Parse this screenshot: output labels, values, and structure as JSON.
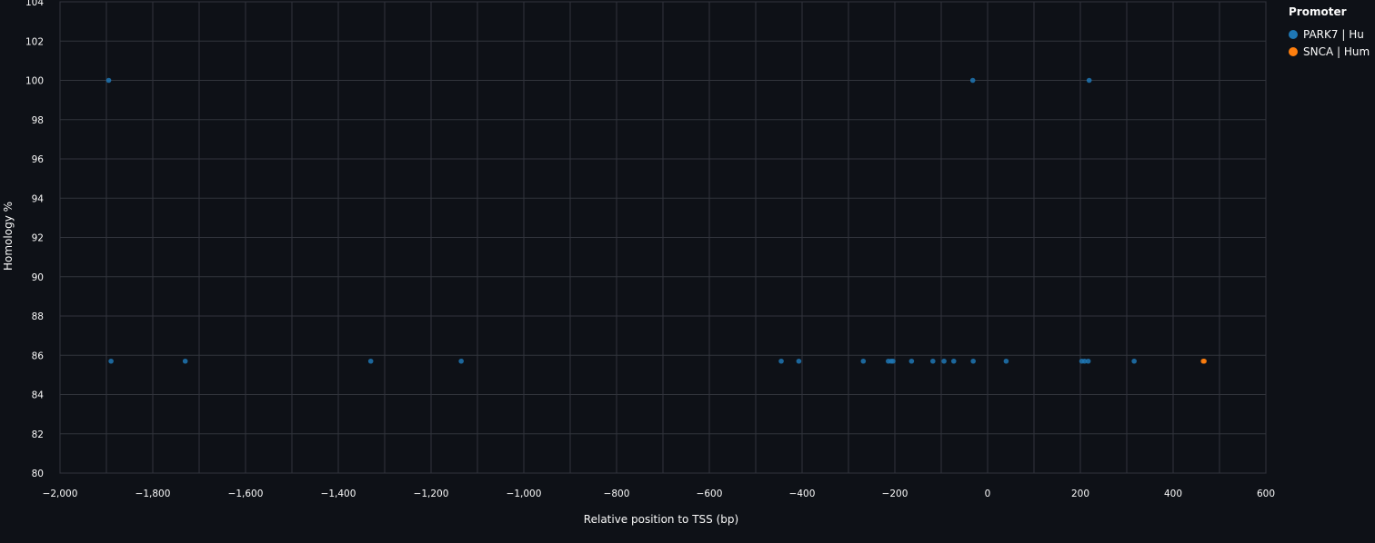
{
  "chart_data": {
    "type": "scatter",
    "xlabel": "Relative position to TSS (bp)",
    "ylabel": "Homology %",
    "xlim": [
      -2000,
      600
    ],
    "ylim": [
      80,
      104
    ],
    "x_ticks": [
      -2000,
      -1800,
      -1600,
      -1400,
      -1200,
      -1000,
      -800,
      -600,
      -400,
      -200,
      0,
      200,
      400,
      600
    ],
    "x_tick_labels": [
      "−2,000",
      "−1,800",
      "−1,600",
      "−1,400",
      "−1,200",
      "−1,000",
      "−800",
      "−600",
      "−400",
      "−200",
      "0",
      "200",
      "400",
      "600"
    ],
    "y_ticks": [
      80,
      82,
      84,
      86,
      88,
      90,
      92,
      94,
      96,
      98,
      100,
      102,
      104
    ],
    "x_grid_step": 100,
    "grid": true,
    "legend": {
      "title": "Promoter",
      "placement": "top-right"
    },
    "series": [
      {
        "name": "PARK7 | Hu",
        "color": "#1f77b4",
        "points": [
          [
            -1895,
            100
          ],
          [
            -1890,
            85.7
          ],
          [
            -1730,
            85.7
          ],
          [
            -1330,
            85.7
          ],
          [
            -1135,
            85.7
          ],
          [
            -445,
            85.7
          ],
          [
            -407,
            85.7
          ],
          [
            -268,
            85.7
          ],
          [
            -214,
            85.7
          ],
          [
            -208,
            85.7
          ],
          [
            -204,
            85.7
          ],
          [
            -164,
            85.7
          ],
          [
            -118,
            85.7
          ],
          [
            -94,
            85.7
          ],
          [
            -73,
            85.7
          ],
          [
            -32,
            100
          ],
          [
            -31,
            85.7
          ],
          [
            40,
            85.7
          ],
          [
            203,
            85.7
          ],
          [
            209,
            85.7
          ],
          [
            217,
            85.7
          ],
          [
            219,
            100
          ],
          [
            316,
            85.7
          ]
        ]
      },
      {
        "name": "SNCA | Hum",
        "color": "#ff7f0e",
        "points": [
          [
            465,
            85.7
          ],
          [
            467,
            85.7
          ]
        ]
      }
    ]
  }
}
